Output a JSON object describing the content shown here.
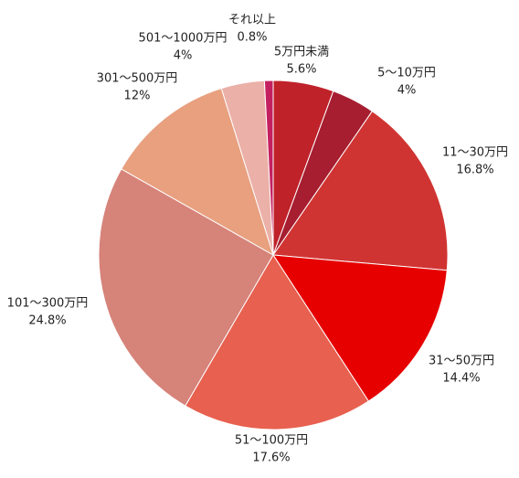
{
  "chart_data": {
    "type": "pie",
    "categories": [
      "5万円未満",
      "5〜10万円",
      "11〜30万円",
      "31〜50万円",
      "51〜100万円",
      "101〜300万円",
      "301〜500万円",
      "501〜1000万円",
      "それ以上"
    ],
    "values": [
      5.6,
      4,
      16.8,
      14.4,
      17.6,
      24.8,
      12,
      4,
      0.8
    ],
    "value_labels": [
      "5.6%",
      "4%",
      "16.8%",
      "14.4%",
      "17.6%",
      "24.8%",
      "12%",
      "4%",
      "0.8%"
    ],
    "colors": [
      "#c0222a",
      "#a61e30",
      "#d03432",
      "#e60000",
      "#e8604f",
      "#d6837a",
      "#e8a07f",
      "#ebb0a8",
      "#c42060"
    ]
  }
}
